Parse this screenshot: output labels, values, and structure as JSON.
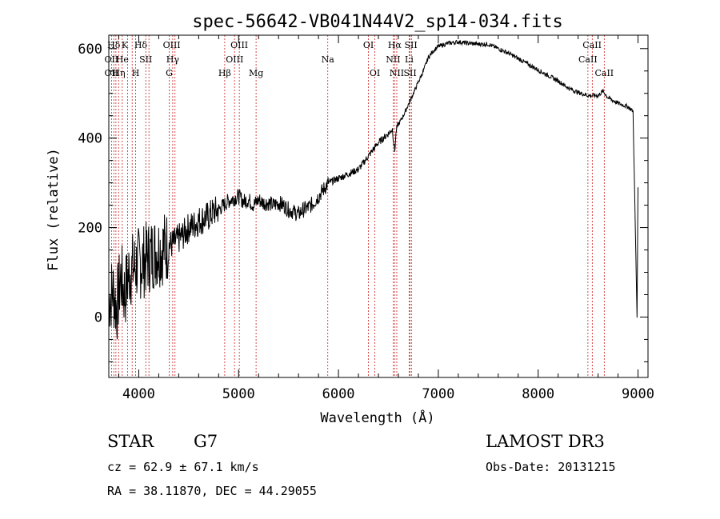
{
  "chart_data": {
    "type": "line",
    "title": "spec-56642-VB041N44V2_sp14-034.fits",
    "xlabel": "Wavelength (Å)",
    "ylabel": "Flux (relative)",
    "xlim": [
      3700,
      9100
    ],
    "ylim": [
      -135,
      630
    ],
    "x_ticks": [
      4000,
      5000,
      6000,
      7000,
      8000,
      9000
    ],
    "y_ticks": [
      0,
      200,
      400,
      600
    ],
    "line_color": "#000000",
    "marker_color": "#cc2222",
    "series": [
      {
        "name": "flux",
        "x": [
          3700,
          3740,
          3780,
          3820,
          3860,
          3900,
          3950,
          4000,
          4050,
          4100,
          4150,
          4200,
          4250,
          4300,
          4350,
          4400,
          4450,
          4500,
          4550,
          4600,
          4650,
          4700,
          4750,
          4800,
          4850,
          4900,
          4950,
          5000,
          5050,
          5100,
          5150,
          5200,
          5250,
          5300,
          5350,
          5400,
          5450,
          5500,
          5550,
          5600,
          5650,
          5700,
          5750,
          5800,
          5850,
          5900,
          5950,
          6000,
          6050,
          6100,
          6150,
          6200,
          6250,
          6300,
          6350,
          6400,
          6450,
          6500,
          6540,
          6563,
          6580,
          6600,
          6650,
          6700,
          6750,
          6800,
          6850,
          6900,
          6950,
          7000,
          7100,
          7200,
          7300,
          7400,
          7500,
          7600,
          7700,
          7800,
          7900,
          8000,
          8100,
          8200,
          8300,
          8400,
          8500,
          8600,
          8650,
          8700,
          8800,
          8900,
          8950,
          8990,
          9000
        ],
        "y": [
          40,
          60,
          20,
          90,
          50,
          100,
          110,
          120,
          125,
          135,
          145,
          150,
          155,
          160,
          165,
          175,
          185,
          200,
          205,
          215,
          220,
          225,
          235,
          240,
          250,
          260,
          265,
          270,
          258,
          262,
          250,
          262,
          255,
          255,
          250,
          255,
          250,
          240,
          235,
          230,
          240,
          245,
          255,
          270,
          285,
          300,
          305,
          310,
          315,
          320,
          325,
          330,
          345,
          360,
          375,
          390,
          400,
          410,
          420,
          370,
          420,
          430,
          450,
          475,
          500,
          525,
          550,
          580,
          595,
          605,
          612,
          615,
          612,
          610,
          610,
          600,
          590,
          578,
          565,
          552,
          540,
          528,
          512,
          502,
          495,
          495,
          505,
          490,
          478,
          470,
          460,
          0,
          290
        ]
      }
    ],
    "lines_top": [
      {
        "label": "Hδ",
        "x": 3750
      },
      {
        "label": "K",
        "x": 3860
      },
      {
        "label": "Hδ",
        "x": 4020
      },
      {
        "label": "OIII",
        "x": 4330
      },
      {
        "label": "OIII",
        "x": 5007
      },
      {
        "label": "OI",
        "x": 6300
      },
      {
        "label": "Hα",
        "x": 6563
      },
      {
        "label": "SII",
        "x": 6725
      },
      {
        "label": "CaII",
        "x": 8540
      }
    ],
    "lines_mid": [
      {
        "label": "OII",
        "x": 3727
      },
      {
        "label": "He",
        "x": 3835
      },
      {
        "label": "SII",
        "x": 4070
      },
      {
        "label": "Hγ",
        "x": 4340
      },
      {
        "label": "OIII",
        "x": 4960
      },
      {
        "label": "Na",
        "x": 5893
      },
      {
        "label": "NII",
        "x": 6548
      },
      {
        "label": "Li",
        "x": 6708
      },
      {
        "label": "CaII",
        "x": 8498
      }
    ],
    "lines_bot": [
      {
        "label": "OII",
        "x": 3727
      },
      {
        "label": "Hη",
        "x": 3800
      },
      {
        "label": "H",
        "x": 3969
      },
      {
        "label": "G",
        "x": 4305
      },
      {
        "label": "Hβ",
        "x": 4861
      },
      {
        "label": "Mg",
        "x": 5175
      },
      {
        "label": "OI",
        "x": 6364
      },
      {
        "label": "NII",
        "x": 6584
      },
      {
        "label": "SII",
        "x": 6717
      },
      {
        "label": "CaII",
        "x": 8662
      }
    ],
    "marker_lines": [
      3727,
      3750,
      3771,
      3798,
      3835,
      3889,
      3934,
      3969,
      4070,
      4102,
      4305,
      4340,
      4363,
      4861,
      4959,
      5007,
      5175,
      5893,
      6300,
      6364,
      6548,
      6563,
      6584,
      6708,
      6717,
      6731,
      8498,
      8542,
      8662
    ]
  },
  "info": {
    "object_class": "STAR",
    "subclass": "G7",
    "survey": "LAMOST DR3",
    "cz": "cz = 62.9 ± 67.1 km/s",
    "obs_date": "Obs-Date: 20131215",
    "coords": "RA =  38.11870, DEC =  44.29055"
  }
}
